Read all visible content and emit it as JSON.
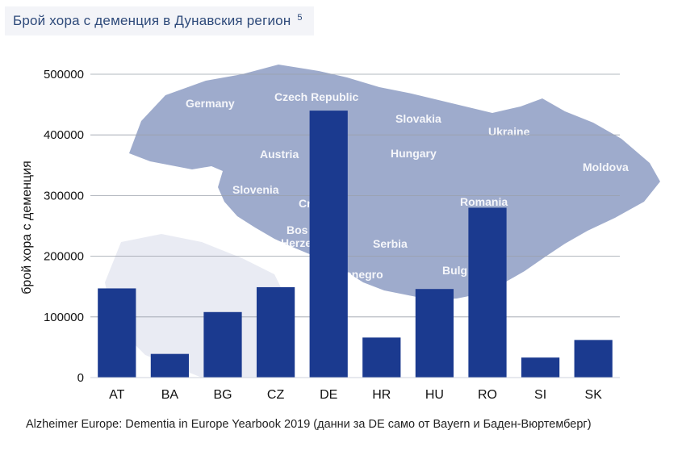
{
  "header": {
    "title": "Брой хора с деменция в Дунавския регион",
    "footnote_marker": "5"
  },
  "background_map": {
    "labels": [
      "Germany",
      "Czech Republic",
      "Slovakia",
      "Ukraine",
      "Austria",
      "Hungary",
      "Moldova",
      "Slovenia",
      "Romania",
      "Cr",
      "Bos d",
      "Herze a",
      "Serbia",
      "enegro",
      "Bulg"
    ],
    "fill_color": "#8d9cc3"
  },
  "chart_data": {
    "type": "bar",
    "categories": [
      "AT",
      "BA",
      "BG",
      "CZ",
      "DE",
      "HR",
      "HU",
      "RO",
      "SI",
      "SK"
    ],
    "series": [
      {
        "values": [
          147000,
          39000,
          108000,
          149000,
          440000,
          66000,
          146000,
          280000,
          33000,
          62000
        ]
      }
    ],
    "ylabel": "брой хора с деменция",
    "ylim": [
      0,
      500000
    ],
    "yticks": [
      0,
      100000,
      200000,
      300000,
      400000,
      500000
    ],
    "ytick_labels": [
      "0",
      "100000",
      "200000",
      "300000",
      "400000",
      "500000"
    ],
    "grid": true,
    "bar_color": "#1b3a8f"
  },
  "caption": "Alzheimer Europe: Dementia in Europe Yearbook 2019 (данни за DE само от Bayern и Баден-Вюртемберг)"
}
